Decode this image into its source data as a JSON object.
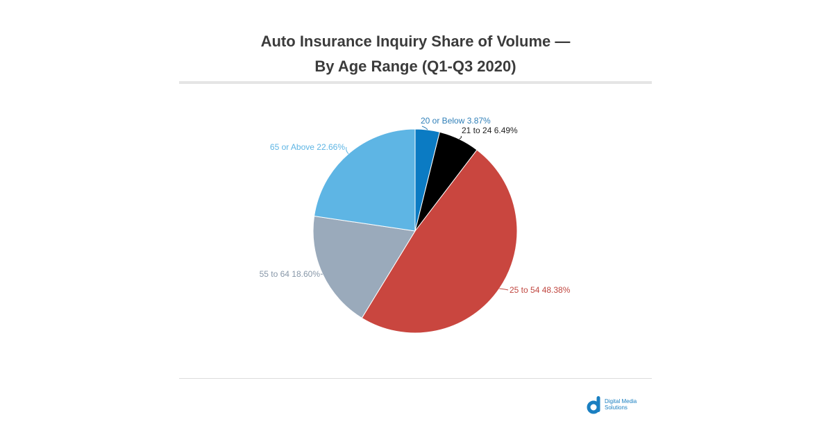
{
  "chart_data": {
    "type": "pie",
    "title_line1": "Auto Insurance Inquiry Share of Volume —",
    "title_line2": "By Age Range (Q1-Q3 2020)",
    "slices": [
      {
        "label": "20 or Below",
        "value": 3.87,
        "display": "20 or Below 3.87%",
        "color": "#0b7bc3",
        "label_color": "#2f7fb8"
      },
      {
        "label": "21 to 24",
        "value": 6.49,
        "display": "21 to 24 6.49%",
        "color": "#000000",
        "label_color": "#222222"
      },
      {
        "label": "25 to 54",
        "value": 48.38,
        "display": "25 to 54 48.38%",
        "color": "#c9463f",
        "label_color": "#c0463f"
      },
      {
        "label": "55 to 64",
        "value": 18.6,
        "display": "55 to 64 18.60%",
        "color": "#9aaabb",
        "label_color": "#8797a8"
      },
      {
        "label": "65 or Above",
        "value": 22.66,
        "display": "65 or Above 22.66%",
        "color": "#5eb5e4",
        "label_color": "#5eb5e4"
      }
    ],
    "start": "top",
    "direction": "clockwise",
    "legend": "none"
  },
  "logo": {
    "line1": "Digital Media",
    "line2": "Solutions",
    "color": "#1a7fc1"
  }
}
